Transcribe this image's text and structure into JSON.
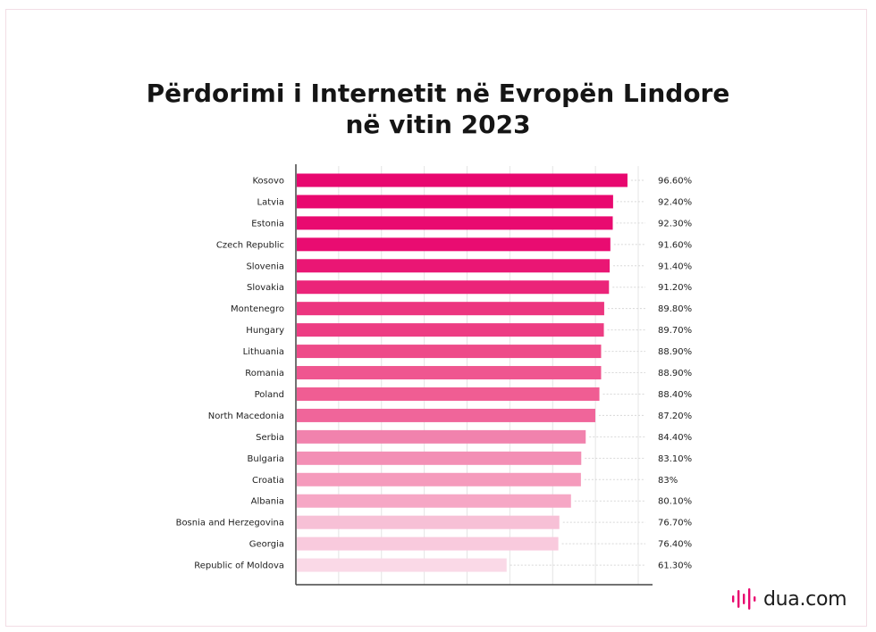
{
  "title_line1": "Përdorimi i Internetit në Evropën Lindore",
  "title_line2": "në vitin 2023",
  "brand": "dua.com",
  "chart_data": {
    "type": "bar",
    "orientation": "horizontal",
    "title": "Përdorimi i Internetit në Evropën Lindore në vitin 2023",
    "xlabel": "",
    "ylabel": "",
    "xlim": [
      0,
      100
    ],
    "grid": true,
    "categories": [
      "Kosovo",
      "Latvia",
      "Estonia",
      "Czech Republic",
      "Slovenia",
      "Slovakia",
      "Montenegro",
      "Hungary",
      "Lithuania",
      "Romania",
      "Poland",
      "North Macedonia",
      "Serbia",
      "Bulgaria",
      "Croatia",
      "Albania",
      "Bosnia and Herzegovina",
      "Georgia",
      "Republic of Moldova"
    ],
    "values": [
      96.6,
      92.4,
      92.3,
      91.6,
      91.4,
      91.2,
      89.8,
      89.7,
      88.9,
      88.9,
      88.4,
      87.2,
      84.4,
      83.1,
      83,
      80.1,
      76.7,
      76.4,
      61.3
    ],
    "value_labels": [
      "96.60%",
      "92.40%",
      "92.30%",
      "91.60%",
      "91.40%",
      "91.20%",
      "89.80%",
      "89.70%",
      "88.90%",
      "88.90%",
      "88.40%",
      "87.20%",
      "84.40%",
      "83.10%",
      "83%",
      "80.10%",
      "76.70%",
      "76.40%",
      "61.30%"
    ],
    "colors": [
      "#e8076f",
      "#e9086f",
      "#e90a70",
      "#e90c71",
      "#ea1674",
      "#eb2479",
      "#ec357f",
      "#ed3d83",
      "#ee4b89",
      "#ef5690",
      "#f05d93",
      "#f0659a",
      "#f182ad",
      "#f38fb5",
      "#f59bbc",
      "#f6a7c5",
      "#f7c0d6",
      "#f9cadd",
      "#fad9e7"
    ]
  }
}
